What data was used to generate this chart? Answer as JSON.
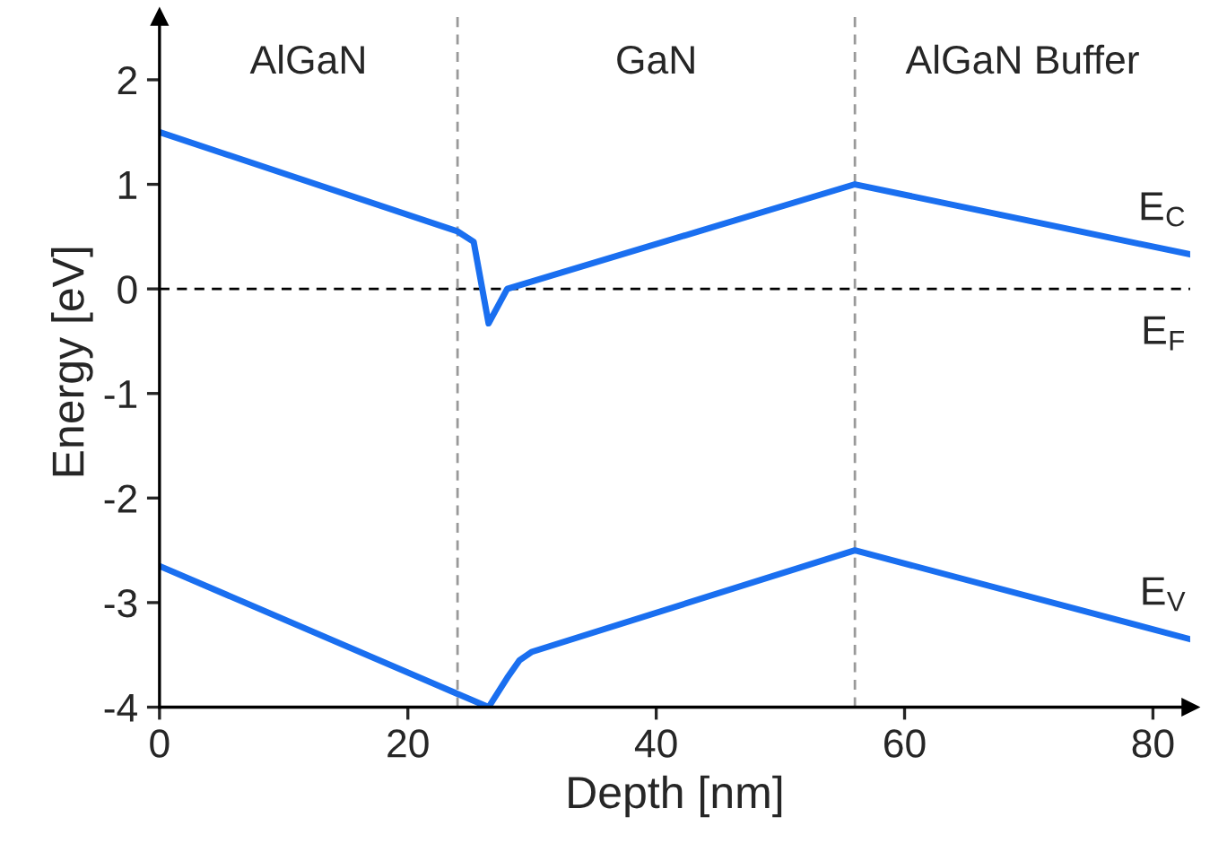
{
  "chart_data": {
    "type": "line",
    "xlabel": "Depth [nm]",
    "ylabel": "Energy [eV]",
    "xlim": [
      0,
      83
    ],
    "ylim": [
      -4,
      2.6
    ],
    "xticks": [
      0,
      20,
      40,
      60,
      80
    ],
    "yticks": [
      -4,
      -3,
      -2,
      -1,
      0,
      1,
      2
    ],
    "grid": false,
    "legend": false,
    "marker": "none",
    "line_style": "solid",
    "series": [
      {
        "name": "E$_{C}$",
        "color": "#1a6ff0",
        "x": [
          0,
          24,
          25.3,
          26.5,
          28,
          56,
          83
        ],
        "values": [
          1.5,
          0.55,
          0.45,
          -0.33,
          0.0,
          1.0,
          0.33
        ]
      },
      {
        "name": "E$_{V}$",
        "color": "#1a6ff0",
        "x": [
          0,
          26.5,
          28,
          29,
          30,
          56,
          83
        ],
        "values": [
          -2.65,
          -4.0,
          -3.72,
          -3.55,
          -3.47,
          -2.5,
          -3.35
        ]
      }
    ],
    "ref_lines": [
      {
        "axis": "y",
        "value": 0,
        "label": "E$_{F}$",
        "color": "#000000",
        "line_style": "dashed"
      },
      {
        "axis": "x",
        "value": 24,
        "label": null,
        "color": "#999999",
        "line_style": "dashed"
      },
      {
        "axis": "x",
        "value": 56,
        "label": null,
        "color": "#999999",
        "line_style": "dashed"
      }
    ],
    "annotations": [
      "AlGaN",
      "GaN",
      "AlGaN Buffer"
    ]
  }
}
